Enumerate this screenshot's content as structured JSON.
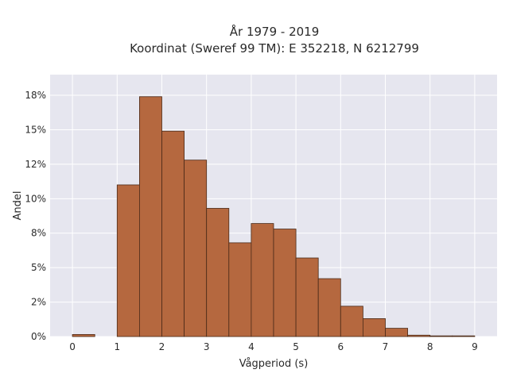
{
  "chart_data": {
    "type": "bar",
    "title": "År 1979 - 2019",
    "subtitle": "Koordinat (Sweref 99 TM): E 352218, N 6212799",
    "xlabel": "Vågperiod (s)",
    "ylabel": "Andel",
    "bin_width": 0.5,
    "bins_start": [
      0,
      0.5,
      1,
      1.5,
      2,
      2.5,
      3,
      3.5,
      4,
      4.5,
      5,
      5.5,
      6,
      6.5,
      7,
      7.5,
      8,
      8.5
    ],
    "values": [
      0.15,
      0,
      11.0,
      17.4,
      14.9,
      12.8,
      9.3,
      6.8,
      8.2,
      7.8,
      5.7,
      4.2,
      2.2,
      1.3,
      0.6,
      0.1,
      0.05,
      0.05
    ],
    "xlim": [
      -0.5,
      9.5
    ],
    "ylim": [
      0,
      19
    ],
    "xticks": [
      0,
      1,
      2,
      3,
      4,
      5,
      6,
      7,
      8,
      9
    ],
    "xtick_labels": [
      "0",
      "1",
      "2",
      "3",
      "4",
      "5",
      "6",
      "7",
      "8",
      "9"
    ],
    "yticks": [
      0,
      2.5,
      5,
      7.5,
      10,
      12.5,
      15,
      17.5
    ],
    "ytick_labels": [
      "0%",
      "2%",
      "5%",
      "8%",
      "10%",
      "12%",
      "15%",
      "18%"
    ],
    "grid": true,
    "colors": {
      "bar_fill": "#b5683f",
      "bar_stroke": "#4a2a18",
      "plot_bg": "#e6e6ef",
      "grid": "#ffffff"
    }
  }
}
